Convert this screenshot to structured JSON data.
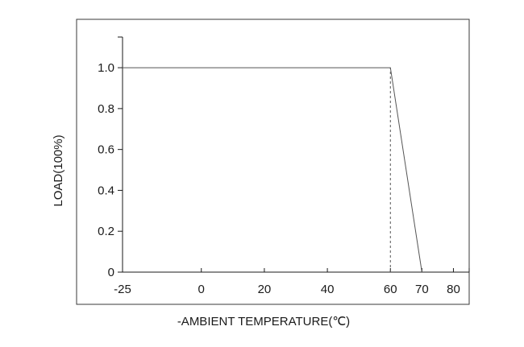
{
  "chart_data": {
    "type": "line",
    "title": "",
    "xlabel": "-AMBIENT TEMPERATURE(℃)",
    "ylabel": "LOAD(100%)",
    "x_ticks": [
      -25,
      0,
      20,
      40,
      60,
      70,
      80
    ],
    "y_ticks": [
      0,
      0.2,
      0.4,
      0.6,
      0.8,
      1.0
    ],
    "x_tick_labels": [
      "-25",
      "0",
      "20",
      "40",
      "60",
      "70",
      "80"
    ],
    "y_tick_labels": [
      "0",
      "0.2",
      "0.4",
      "0.6",
      "0.8",
      "1.0"
    ],
    "xlim": [
      -25,
      85
    ],
    "ylim": [
      0,
      1.15
    ],
    "grid": false,
    "series": [
      {
        "x": [
          -25,
          60,
          70
        ],
        "y": [
          1.0,
          1.0,
          0
        ]
      }
    ],
    "reference_lines": [
      {
        "x": [
          60,
          60
        ],
        "y": [
          0,
          1.0
        ],
        "style": "dashed"
      }
    ],
    "colors": {
      "line": "#555555",
      "axis": "#1a1a1a",
      "frame": "#3a3a3a"
    }
  }
}
